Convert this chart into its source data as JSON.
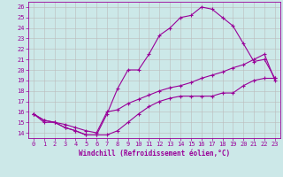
{
  "xlabel": "Windchill (Refroidissement éolien,°C)",
  "x_hours": [
    0,
    1,
    2,
    3,
    4,
    5,
    6,
    7,
    8,
    9,
    10,
    11,
    12,
    13,
    14,
    15,
    16,
    17,
    18,
    19,
    20,
    21,
    22,
    23
  ],
  "line_upper": [
    15.8,
    15.2,
    15.0,
    14.5,
    14.2,
    13.8,
    13.8,
    15.8,
    18.2,
    20.0,
    20.0,
    21.5,
    23.3,
    24.0,
    25.0,
    25.2,
    26.0,
    25.8,
    25.0,
    24.2,
    22.5,
    20.8,
    21.0,
    19.2
  ],
  "line_lower": [
    15.8,
    15.0,
    15.0,
    14.5,
    14.2,
    13.8,
    13.8,
    13.8,
    14.2,
    15.0,
    15.8,
    16.5,
    17.0,
    17.3,
    17.5,
    17.5,
    17.5,
    17.5,
    17.8,
    17.8,
    18.5,
    19.0,
    19.2,
    19.2
  ],
  "line_diag": [
    15.8,
    15.2,
    15.0,
    14.8,
    14.5,
    14.2,
    14.0,
    16.0,
    16.2,
    16.8,
    17.2,
    17.6,
    18.0,
    18.3,
    18.5,
    18.8,
    19.2,
    19.5,
    19.8,
    20.2,
    20.5,
    21.0,
    21.5,
    19.0
  ],
  "ylim_min": 13.5,
  "ylim_max": 26.5,
  "yticks": [
    14,
    15,
    16,
    17,
    18,
    19,
    20,
    21,
    22,
    23,
    24,
    25,
    26
  ],
  "bg_color": "#cce8e8",
  "grid_color": "#bbbbbb",
  "line_color": "#990099",
  "marker": "+",
  "marker_size": 3.5,
  "lw": 0.8,
  "tick_fontsize": 5.0,
  "xlabel_fontsize": 5.5
}
